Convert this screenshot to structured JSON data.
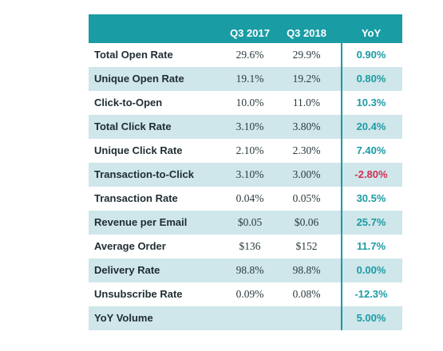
{
  "headers": {
    "q3_2017": "Q3 2017",
    "q3_2018": "Q3 2018",
    "yoy": "YoY"
  },
  "rows": [
    {
      "metric": "Total Open Rate",
      "q3_2017": "29.6%",
      "q3_2018": "29.9%",
      "yoy": "0.90%"
    },
    {
      "metric": "Unique Open Rate",
      "q3_2017": "19.1%",
      "q3_2018": "19.2%",
      "yoy": "0.80%"
    },
    {
      "metric": "Click-to-Open",
      "q3_2017": "10.0%",
      "q3_2018": "11.0%",
      "yoy": "10.3%"
    },
    {
      "metric": "Total Click Rate",
      "q3_2017": "3.10%",
      "q3_2018": "3.80%",
      "yoy": "20.4%"
    },
    {
      "metric": "Unique Click Rate",
      "q3_2017": "2.10%",
      "q3_2018": "2.30%",
      "yoy": "7.40%"
    },
    {
      "metric": "Transaction-to-Click",
      "q3_2017": "3.10%",
      "q3_2018": "3.00%",
      "yoy": "-2.80%"
    },
    {
      "metric": "Transaction Rate",
      "q3_2017": "0.04%",
      "q3_2018": "0.05%",
      "yoy": "30.5%"
    },
    {
      "metric": "Revenue per Email",
      "q3_2017": "$0.05",
      "q3_2018": "$0.06",
      "yoy": "25.7%"
    },
    {
      "metric": "Average Order",
      "q3_2017": "$136",
      "q3_2018": "$152",
      "yoy": "11.7%"
    },
    {
      "metric": "Delivery Rate",
      "q3_2017": "98.8%",
      "q3_2018": "98.8%",
      "yoy": "0.00%"
    },
    {
      "metric": "Unsubscribe Rate",
      "q3_2017": "0.09%",
      "q3_2018": "0.08%",
      "yoy": "-12.3%"
    },
    {
      "metric": "YoY Volume",
      "q3_2017": "",
      "q3_2018": "",
      "yoy": "5.00%"
    }
  ],
  "colors": {
    "accent": "#1a9ca4",
    "row_alt": "#cfe6ea",
    "negative": "#d22f53",
    "text": "#1f2d33"
  }
}
